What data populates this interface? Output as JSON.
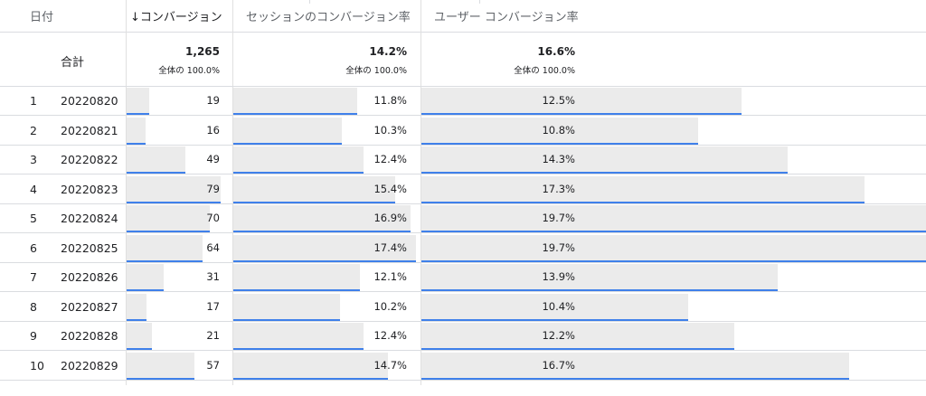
{
  "columns": {
    "date": "日付",
    "conversions": "↓コンバージョン",
    "session_rate": "セッションのコンバージョン率",
    "user_rate": "ユーザー コンバージョン率"
  },
  "totals": {
    "label": "合計",
    "conversions": "1,265",
    "conversions_sub": "全体の 100.0%",
    "session_rate": "14.2%",
    "session_rate_sub": "全体の 100.0%",
    "user_rate": "16.6%",
    "user_rate_sub": "全体の 100.0%"
  },
  "rows": [
    {
      "index": "1",
      "date": "20220820",
      "conversions": "19",
      "session_rate": "11.8%",
      "user_rate": "12.5%"
    },
    {
      "index": "2",
      "date": "20220821",
      "conversions": "16",
      "session_rate": "10.3%",
      "user_rate": "10.8%"
    },
    {
      "index": "3",
      "date": "20220822",
      "conversions": "49",
      "session_rate": "12.4%",
      "user_rate": "14.3%"
    },
    {
      "index": "4",
      "date": "20220823",
      "conversions": "79",
      "session_rate": "15.4%",
      "user_rate": "17.3%"
    },
    {
      "index": "5",
      "date": "20220824",
      "conversions": "70",
      "session_rate": "16.9%",
      "user_rate": "19.7%"
    },
    {
      "index": "6",
      "date": "20220825",
      "conversions": "64",
      "session_rate": "17.4%",
      "user_rate": "19.7%"
    },
    {
      "index": "7",
      "date": "20220826",
      "conversions": "31",
      "session_rate": "12.1%",
      "user_rate": "13.9%"
    },
    {
      "index": "8",
      "date": "20220827",
      "conversions": "17",
      "session_rate": "10.2%",
      "user_rate": "10.4%"
    },
    {
      "index": "9",
      "date": "20220828",
      "conversions": "21",
      "session_rate": "12.4%",
      "user_rate": "12.2%"
    },
    {
      "index": "10",
      "date": "20220829",
      "conversions": "57",
      "session_rate": "14.7%",
      "user_rate": "16.7%"
    }
  ],
  "colors": {
    "bar_fill": "#ebebeb",
    "bar_accent": "#3f80ea",
    "grid": "#dadce0"
  }
}
